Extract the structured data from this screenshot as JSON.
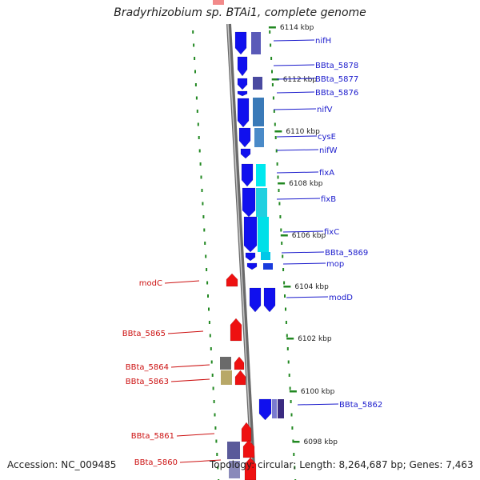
{
  "title": "Bradyrhizobium sp. BTAi1, complete genome",
  "footer": {
    "accession": "Accession: NC_009485",
    "topology": "Topology: circular; Length: 8,264,687 bp; Genes: 7,463"
  },
  "colors": {
    "forward_label": "#1a1acc",
    "reverse_label": "#cc1111",
    "forward_cds": "#1010ee",
    "reverse_cds": "#ee1111",
    "tick": "#228822",
    "backbone": "#888888"
  },
  "position_ticks": [
    "6114 kbp",
    "6112 kbp",
    "6110 kbp",
    "6108 kbp",
    "6106 kbp",
    "6104 kbp",
    "6102 kbp",
    "6100 kbp",
    "6098 kbp"
  ],
  "forward_genes": [
    "nifH",
    "BBta_5878",
    "BBta_5877",
    "BBta_5876",
    "nifV",
    "cysE",
    "nifW",
    "fixA",
    "fixB",
    "fixC",
    "BBta_5869",
    "mop",
    "modD",
    "BBta_5862"
  ],
  "reverse_genes": [
    "modC",
    "BBta_5865",
    "BBta_5864",
    "BBta_5863",
    "BBta_5861",
    "BBta_5860"
  ]
}
